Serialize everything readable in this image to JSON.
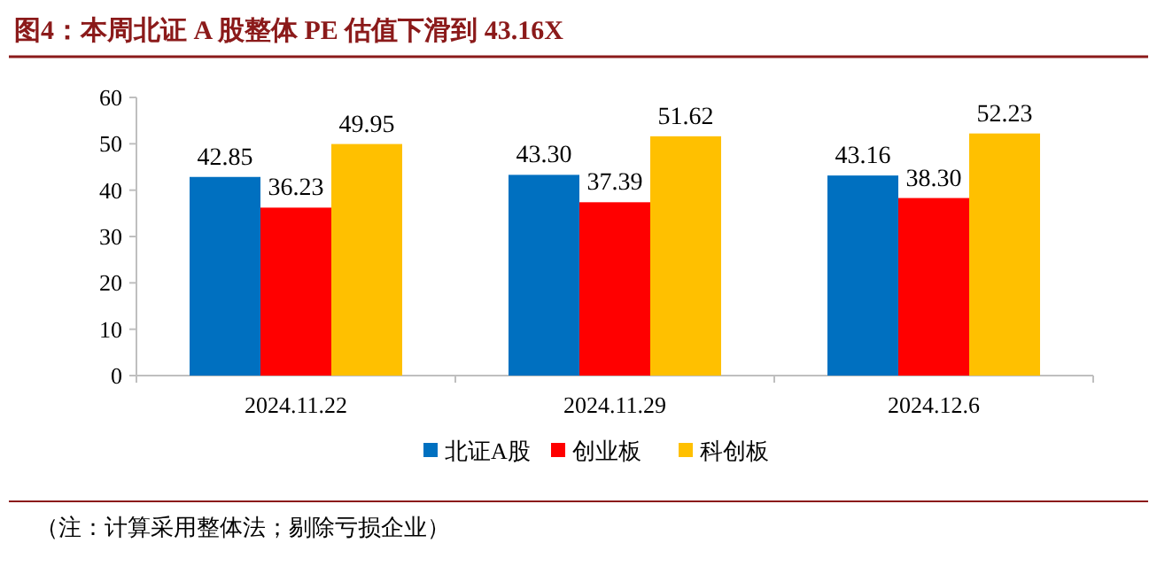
{
  "chart_data": {
    "type": "bar",
    "title": "图4：本周北证 A 股整体 PE 估值下滑到 43.16X",
    "categories": [
      "2024.11.22",
      "2024.11.29",
      "2024.12.6"
    ],
    "series": [
      {
        "name": "北证A股",
        "color": "#0070c0",
        "values": [
          42.85,
          43.3,
          43.16
        ],
        "value_labels": [
          "42.85",
          "43.30",
          "43.16"
        ]
      },
      {
        "name": "创业板",
        "color": "#ff0000",
        "values": [
          36.23,
          37.39,
          38.3
        ],
        "value_labels": [
          "36.23",
          "37.39",
          "38.30"
        ]
      },
      {
        "name": "科创板",
        "color": "#ffc000",
        "values": [
          49.95,
          51.62,
          52.23
        ],
        "value_labels": [
          "49.95",
          "51.62",
          "52.23"
        ]
      }
    ],
    "ylim": [
      0,
      60
    ],
    "yticks": [
      0,
      10,
      20,
      30,
      40,
      50,
      60
    ],
    "grid": false,
    "legend": "bottom",
    "annotations": [
      "（注：计算采用整体法；剔除亏损企业）"
    ]
  }
}
